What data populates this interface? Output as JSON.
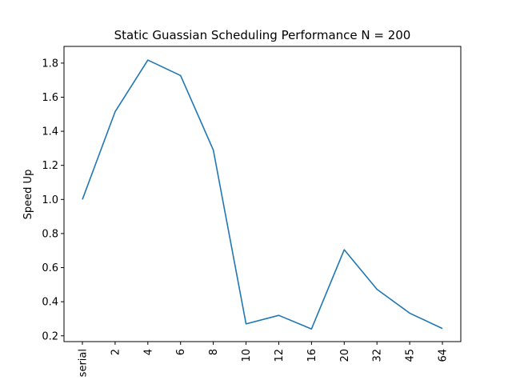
{
  "chart_data": {
    "type": "line",
    "title": "Static Guassian Scheduling Performance N = 200",
    "xlabel": "",
    "ylabel": "Speed Up",
    "categories": [
      "serial",
      "2",
      "4",
      "6",
      "8",
      "10",
      "12",
      "16",
      "20",
      "32",
      "45",
      "64"
    ],
    "series": [
      {
        "values": [
          1.0,
          1.515,
          1.818,
          1.727,
          1.29,
          0.27,
          0.32,
          0.24,
          0.705,
          0.473,
          0.333,
          0.243
        ]
      }
    ],
    "ylim": [
      0.166,
      1.898
    ],
    "yticks": [
      "0.2",
      "0.4",
      "0.6",
      "0.8",
      "1.0",
      "1.2",
      "1.4",
      "1.6",
      "1.8"
    ],
    "grid": false,
    "line_color": "#1f77b4"
  }
}
